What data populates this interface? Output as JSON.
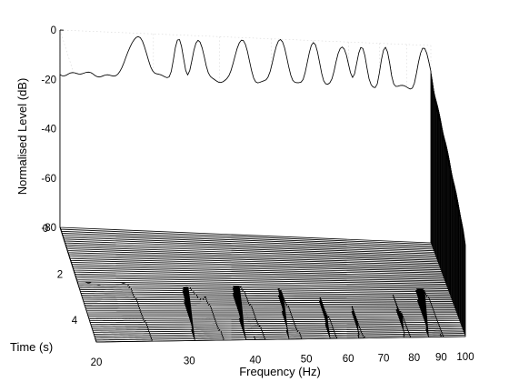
{
  "chart_data": {
    "type": "waterfall",
    "xlabel": "Frequency (Hz)",
    "ylabel": "Normalised Level (dB)",
    "tlabel": "Time (s)",
    "x_ticks": [
      "20",
      "30",
      "40",
      "50",
      "60",
      "70",
      "80",
      "90",
      "100"
    ],
    "y_ticks": [
      "0",
      "-20",
      "-40",
      "-60",
      "-80"
    ],
    "t_ticks": [
      "0",
      "2",
      "4"
    ],
    "x_range": [
      20,
      100
    ],
    "y_range": [
      -80,
      0
    ],
    "t_range": [
      0,
      5
    ],
    "x_scale": "log",
    "grid": true,
    "line_color": "#000000",
    "fill_color": "#ffffff",
    "slice_count": 60
  }
}
